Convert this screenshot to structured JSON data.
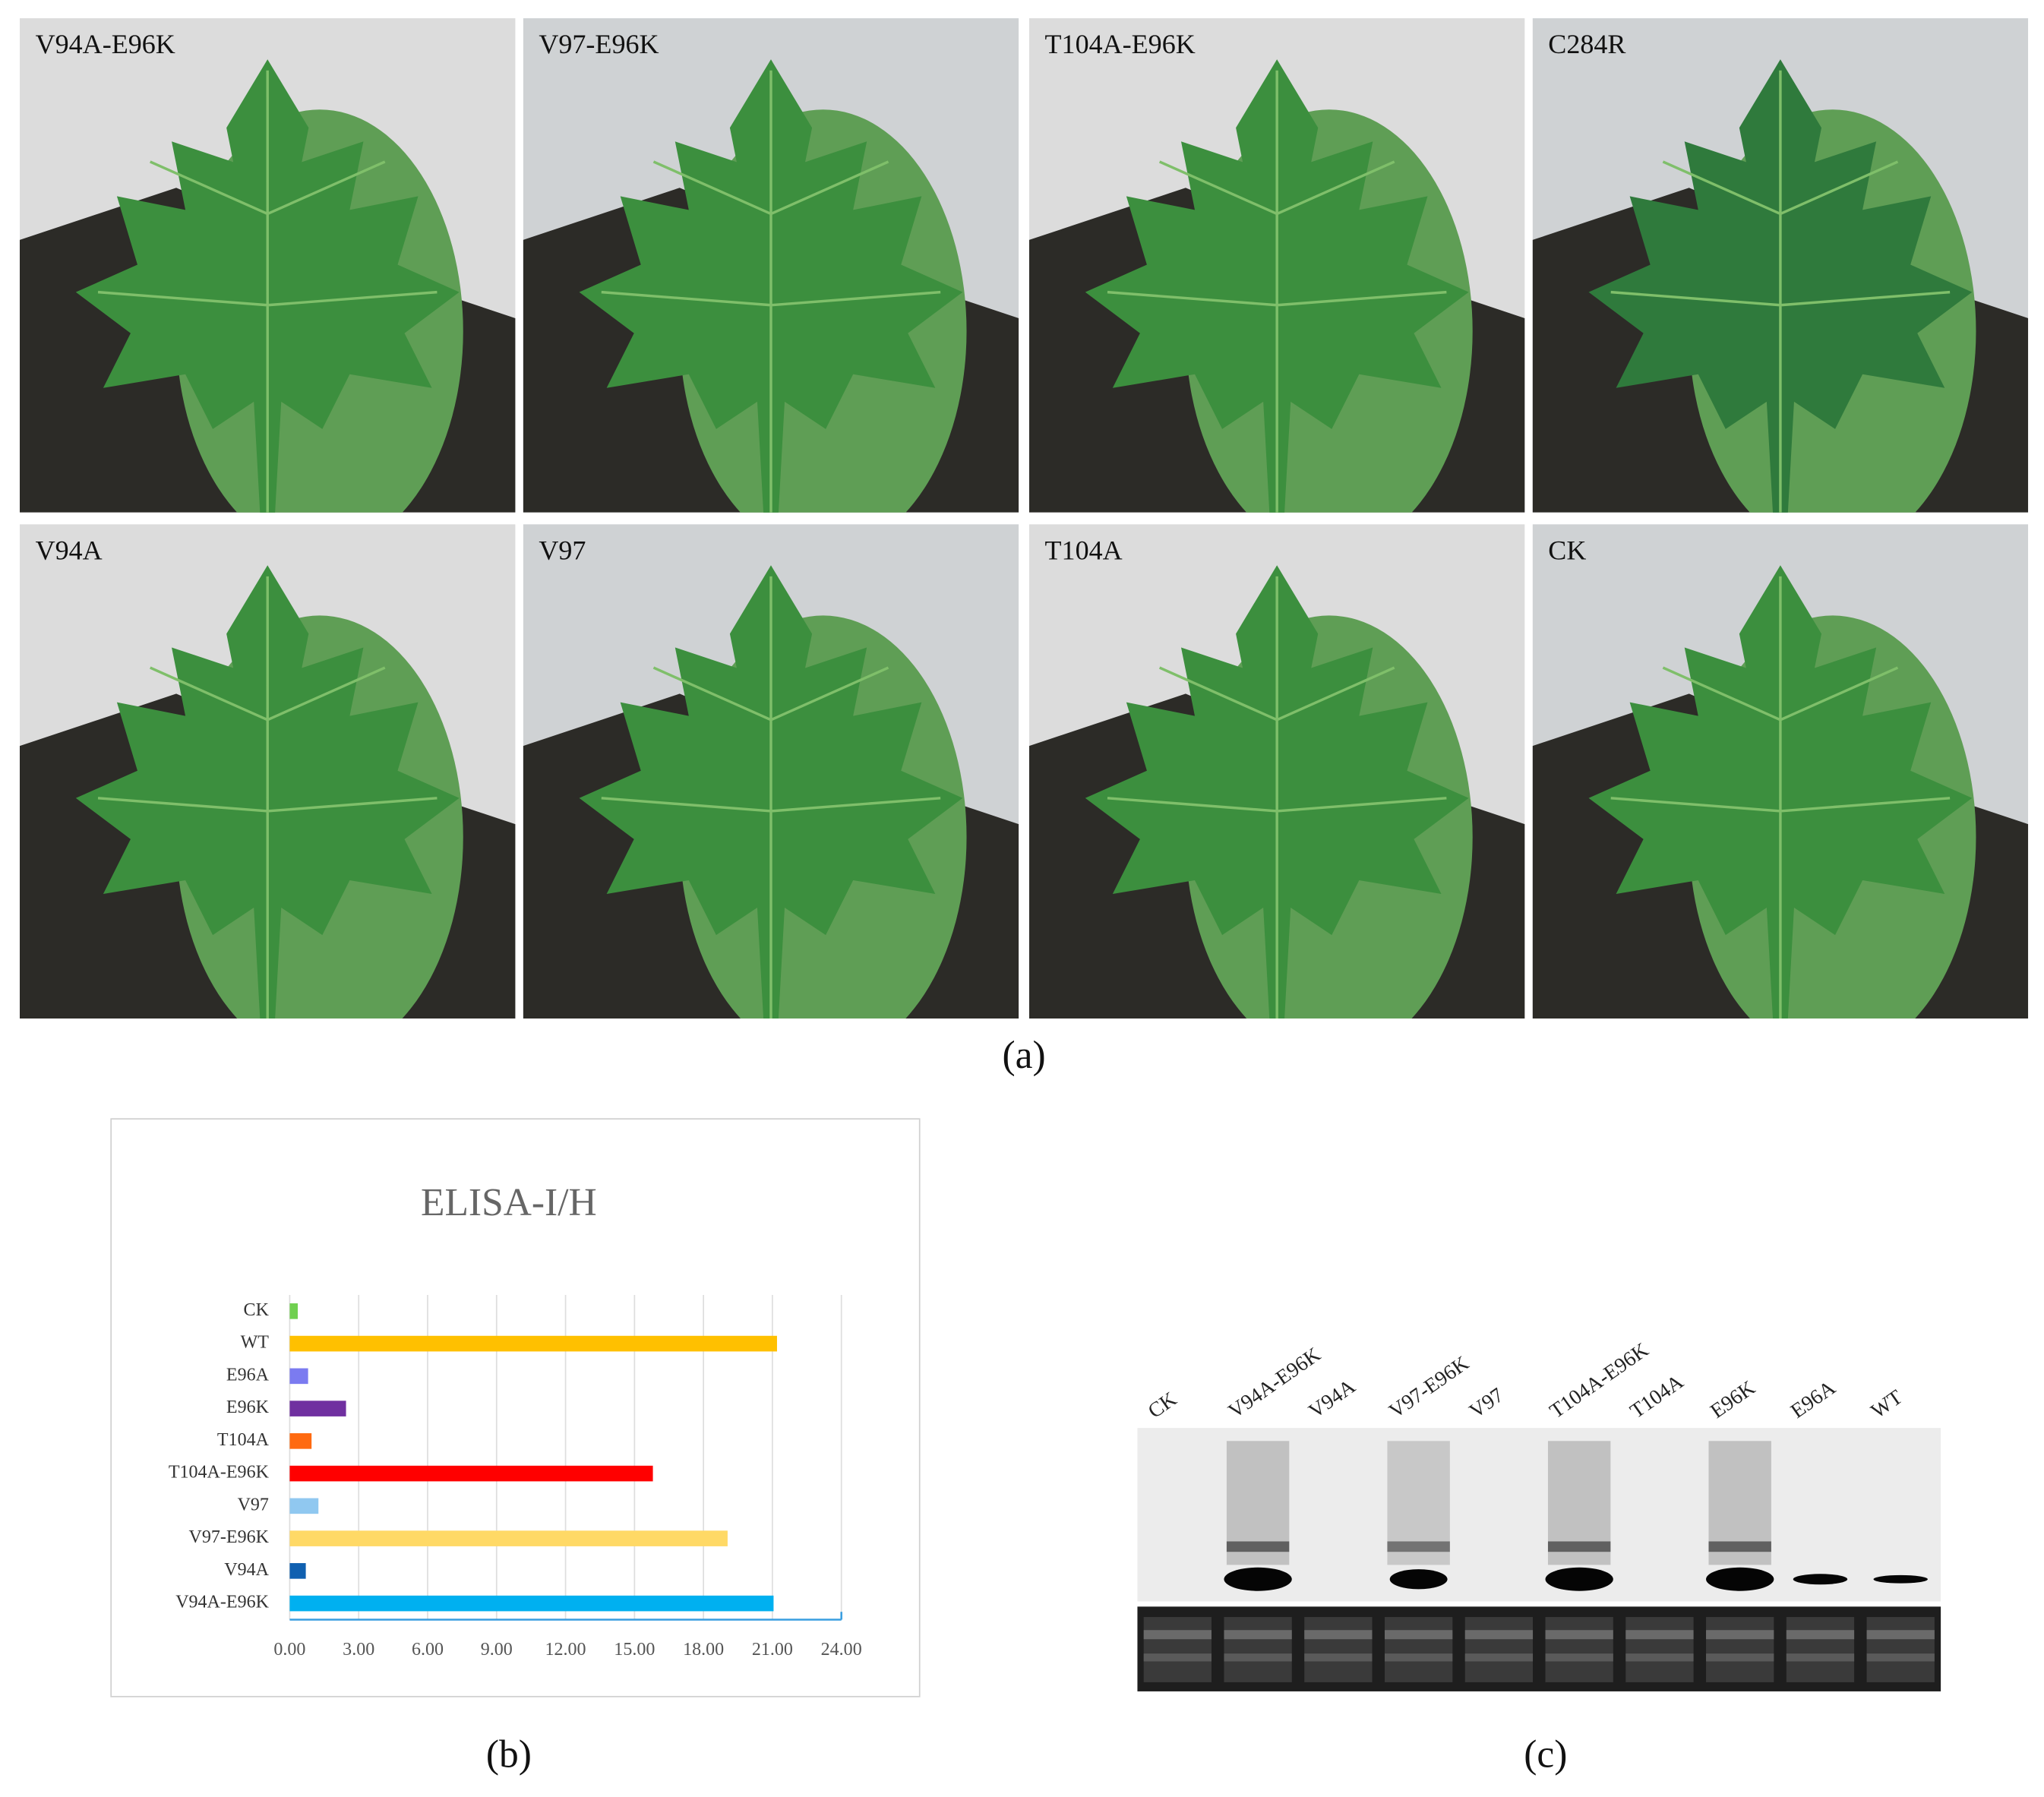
{
  "figure": {
    "photos": [
      "V94A-E96K",
      "V97-E96K",
      "T104A-E96K",
      "C284R",
      "V94A",
      "V97",
      "T104A",
      "CK"
    ],
    "panel_labels": [
      "(a)",
      "(b)",
      "(c)"
    ],
    "gel": {
      "lanes": [
        "CK",
        "V94A-E96K",
        "V94A",
        "V97-E96K",
        "V97",
        "T104A-E96K",
        "T104A",
        "E96K",
        "E96A",
        "WT"
      ]
    }
  },
  "chart_data": {
    "type": "bar",
    "orientation": "horizontal",
    "title": "ELISA-I/H",
    "categories": [
      "CK",
      "WT",
      "E96A",
      "E96K",
      "T104A",
      "T104A-E96K",
      "V97",
      "V97-E96K",
      "V94A",
      "V94A-E96K"
    ],
    "values": [
      0.35,
      21.2,
      0.8,
      2.45,
      0.95,
      15.8,
      1.25,
      19.05,
      0.7,
      21.05
    ],
    "colors": [
      "#70d050",
      "#ffc000",
      "#7b7bf0",
      "#7030a0",
      "#ff6a10",
      "#ff0000",
      "#90c8f0",
      "#ffd966",
      "#1060b0",
      "#00b0f0"
    ],
    "xlim": [
      0,
      24
    ],
    "xticks": [
      {
        "value": 0,
        "label": "0.00"
      },
      {
        "value": 3,
        "label": "3.00"
      },
      {
        "value": 6,
        "label": "6.00"
      },
      {
        "value": 9,
        "label": "9.00"
      },
      {
        "value": 12,
        "label": "12.00"
      },
      {
        "value": 15,
        "label": "15.00"
      },
      {
        "value": 18,
        "label": "18.00"
      },
      {
        "value": 21,
        "label": "21.00"
      },
      {
        "value": 24,
        "label": "24.00"
      }
    ],
    "grid": true
  }
}
